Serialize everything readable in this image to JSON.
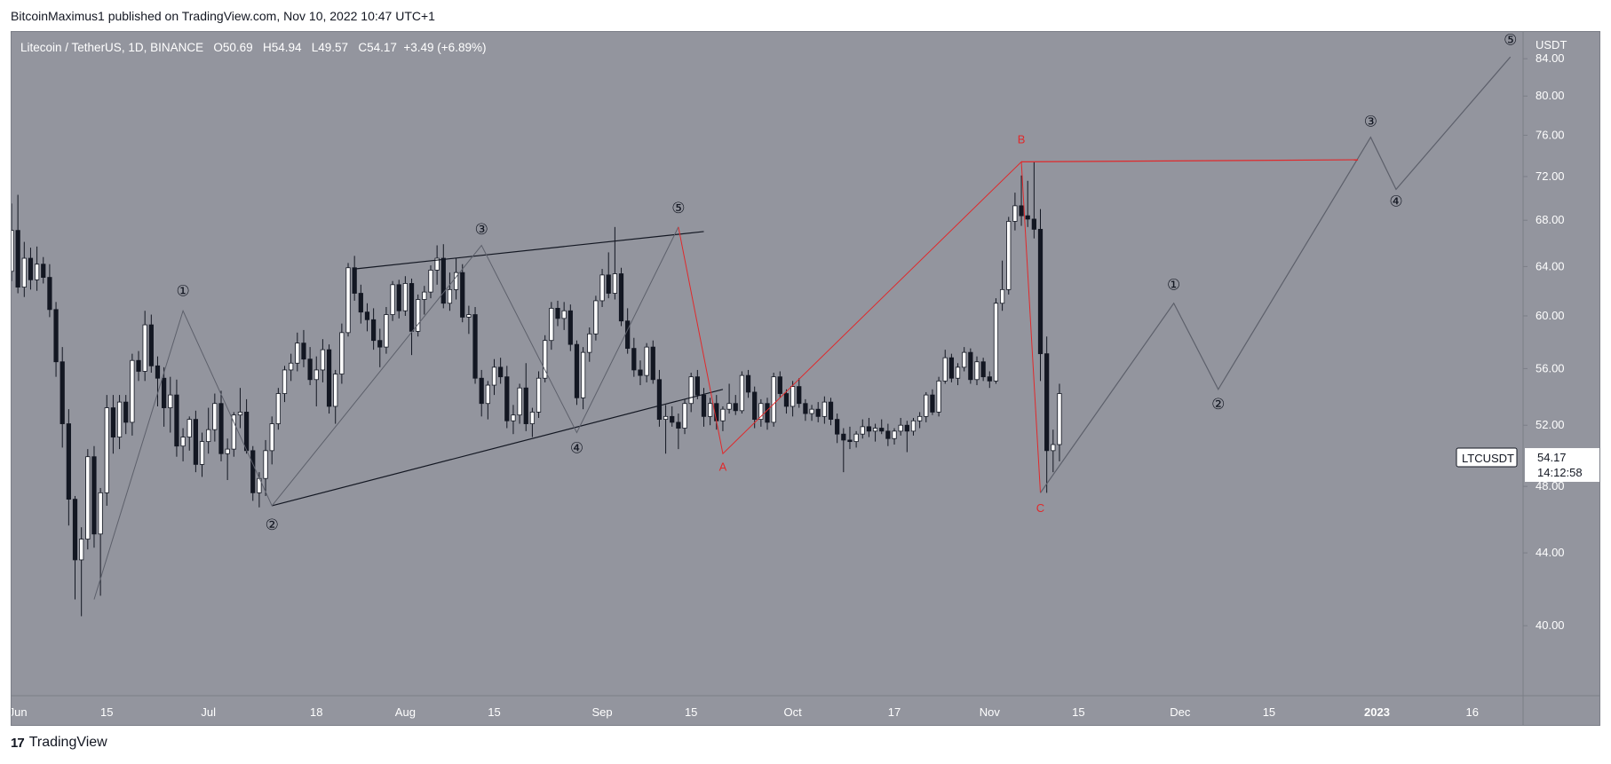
{
  "header": {
    "text": "BitcoinMaximus1 published on TradingView.com, Nov 10, 2022 10:47 UTC+1"
  },
  "legend": {
    "symbol": "Litecoin / TetherUS, 1D, BINANCE",
    "open_label": "O",
    "open": "50.69",
    "high_label": "H",
    "high": "54.94",
    "low_label": "L",
    "low": "49.57",
    "close_label": "C",
    "close": "54.17",
    "change": "+3.49 (+6.89%)"
  },
  "price_axis": {
    "currency": "USDT",
    "ticks": [
      "84.00",
      "80.00",
      "76.00",
      "72.00",
      "68.00",
      "64.00",
      "60.00",
      "56.00",
      "52.00",
      "48.00",
      "44.00",
      "40.00"
    ]
  },
  "time_axis": {
    "ticks": [
      "Jun",
      "15",
      "Jul",
      "18",
      "Aug",
      "15",
      "Sep",
      "15",
      "Oct",
      "17",
      "Nov",
      "15",
      "Dec",
      "15",
      "2023",
      "16"
    ]
  },
  "price_marker": {
    "symbol_tag": "LTCUSDT",
    "price": "54.17",
    "countdown": "14:12:58"
  },
  "footer": {
    "brand": "TradingView",
    "logo_glyph": "17"
  },
  "colors": {
    "chart_bg": "#93959e",
    "bull_body": "#ffffff",
    "bear_body": "#131722",
    "trendline": "#131722",
    "wave_line": "#5d606b",
    "correction_line": "#e0292b",
    "wave_label": "#131722",
    "correction_label": "#e0292b"
  },
  "chart_data": {
    "type": "candlestick",
    "title": "Litecoin / TetherUS, 1D, BINANCE",
    "ylabel": "USDT",
    "ylim": [
      36.5,
      87.0
    ],
    "x_domain_dates": [
      "2022-05-31",
      "2023-01-24"
    ],
    "y_scale": "log",
    "candles": {
      "start_date": "2022-05-31",
      "ohlc": [
        [
          63.6,
          69.5,
          62.8,
          67.1
        ],
        [
          67.1,
          70.3,
          61.8,
          62.3
        ],
        [
          62.3,
          66.1,
          61.5,
          64.7
        ],
        [
          64.7,
          65.6,
          62.1,
          62.9
        ],
        [
          62.9,
          65.7,
          62.0,
          64.2
        ],
        [
          64.2,
          64.8,
          62.6,
          63.1
        ],
        [
          63.1,
          64.2,
          59.9,
          60.5
        ],
        [
          60.5,
          61.1,
          55.4,
          56.5
        ],
        [
          56.5,
          57.6,
          50.5,
          52.1
        ],
        [
          52.1,
          53.1,
          45.6,
          47.2
        ],
        [
          47.2,
          47.4,
          41.4,
          43.6
        ],
        [
          43.6,
          45.5,
          40.5,
          44.8
        ],
        [
          44.8,
          50.4,
          44.2,
          49.9
        ],
        [
          49.9,
          50.6,
          44.3,
          45.1
        ],
        [
          45.1,
          47.9,
          41.6,
          47.6
        ],
        [
          47.6,
          54.1,
          46.8,
          53.2
        ],
        [
          53.2,
          54.1,
          50.1,
          51.2
        ],
        [
          51.2,
          54.1,
          50.4,
          53.6
        ],
        [
          53.6,
          54.1,
          51.4,
          52.2
        ],
        [
          52.2,
          57.1,
          51.3,
          56.6
        ],
        [
          56.6,
          57.3,
          55.1,
          55.8
        ],
        [
          55.8,
          60.4,
          55.1,
          59.3
        ],
        [
          59.3,
          60.1,
          55.7,
          56.2
        ],
        [
          56.2,
          56.9,
          53.3,
          55.3
        ],
        [
          55.3,
          56.1,
          51.9,
          53.2
        ],
        [
          53.2,
          55.4,
          51.5,
          54.1
        ],
        [
          54.1,
          55.2,
          49.9,
          50.6
        ],
        [
          50.6,
          51.8,
          49.6,
          51.2
        ],
        [
          51.2,
          52.6,
          50.3,
          52.4
        ],
        [
          52.4,
          53.0,
          48.9,
          49.4
        ],
        [
          49.4,
          51.5,
          48.6,
          50.9
        ],
        [
          50.9,
          53.2,
          50.1,
          51.7
        ],
        [
          51.7,
          54.2,
          50.9,
          53.5
        ],
        [
          53.5,
          54.4,
          49.6,
          50.1
        ],
        [
          50.1,
          51.1,
          48.4,
          50.4
        ],
        [
          50.4,
          52.9,
          49.9,
          52.7
        ],
        [
          52.7,
          54.6,
          51.8,
          52.9
        ],
        [
          52.9,
          53.8,
          50.1,
          50.3
        ],
        [
          50.3,
          50.6,
          47.1,
          47.6
        ],
        [
          47.6,
          48.9,
          46.7,
          48.5
        ],
        [
          48.5,
          51.0,
          47.4,
          50.3
        ],
        [
          50.3,
          52.6,
          49.4,
          52.1
        ],
        [
          52.1,
          54.6,
          51.7,
          54.2
        ],
        [
          54.2,
          56.2,
          53.6,
          55.9
        ],
        [
          55.9,
          57.1,
          55.1,
          56.4
        ],
        [
          56.4,
          58.7,
          55.8,
          57.9
        ],
        [
          57.9,
          58.9,
          56.1,
          56.7
        ],
        [
          56.7,
          57.6,
          54.8,
          55.2
        ],
        [
          55.2,
          56.9,
          53.3,
          55.9
        ],
        [
          55.9,
          58.2,
          55.0,
          57.4
        ],
        [
          57.4,
          57.8,
          52.8,
          53.3
        ],
        [
          53.3,
          55.9,
          52.1,
          55.6
        ],
        [
          55.6,
          59.4,
          54.9,
          58.7
        ],
        [
          58.7,
          64.3,
          58.4,
          63.9
        ],
        [
          63.9,
          64.9,
          61.2,
          61.8
        ],
        [
          61.8,
          62.5,
          59.4,
          60.3
        ],
        [
          60.3,
          61.0,
          58.8,
          59.7
        ],
        [
          59.7,
          60.6,
          57.4,
          58.1
        ],
        [
          58.1,
          59.0,
          56.1,
          57.6
        ],
        [
          57.6,
          60.7,
          57.1,
          60.1
        ],
        [
          60.1,
          62.8,
          59.6,
          62.5
        ],
        [
          62.5,
          62.9,
          59.8,
          60.4
        ],
        [
          60.4,
          63.2,
          60.0,
          62.6
        ],
        [
          62.6,
          63.0,
          57.0,
          58.8
        ],
        [
          58.8,
          61.7,
          58.4,
          61.3
        ],
        [
          61.3,
          62.4,
          60.1,
          61.9
        ],
        [
          61.9,
          64.1,
          61.4,
          63.7
        ],
        [
          63.7,
          65.8,
          62.5,
          64.7
        ],
        [
          64.7,
          65.9,
          60.6,
          61.0
        ],
        [
          61.0,
          63.5,
          60.4,
          62.1
        ],
        [
          62.1,
          64.7,
          61.3,
          63.5
        ],
        [
          63.5,
          64.2,
          59.5,
          59.9
        ],
        [
          59.9,
          60.8,
          58.6,
          60.1
        ],
        [
          60.1,
          60.7,
          54.9,
          55.3
        ],
        [
          55.3,
          55.9,
          52.6,
          53.5
        ],
        [
          53.5,
          55.1,
          52.4,
          54.8
        ],
        [
          54.8,
          56.7,
          54.1,
          56.1
        ],
        [
          56.1,
          56.8,
          54.9,
          55.4
        ],
        [
          55.4,
          56.2,
          51.8,
          52.3
        ],
        [
          52.3,
          53.4,
          51.4,
          52.7
        ],
        [
          52.7,
          54.9,
          52.1,
          54.6
        ],
        [
          54.6,
          56.4,
          51.6,
          52.1
        ],
        [
          52.1,
          53.2,
          51.2,
          52.9
        ],
        [
          52.9,
          55.8,
          52.5,
          55.3
        ],
        [
          55.3,
          58.5,
          55.0,
          58.1
        ],
        [
          58.1,
          61.1,
          57.4,
          60.6
        ],
        [
          60.6,
          61.2,
          59.2,
          59.8
        ],
        [
          59.8,
          61.1,
          58.9,
          60.4
        ],
        [
          60.4,
          60.9,
          57.3,
          57.8
        ],
        [
          57.8,
          58.1,
          53.4,
          53.9
        ],
        [
          53.9,
          57.6,
          53.1,
          57.2
        ],
        [
          57.2,
          59.1,
          56.5,
          58.6
        ],
        [
          58.6,
          61.6,
          58.1,
          61.2
        ],
        [
          61.2,
          63.8,
          60.7,
          63.3
        ],
        [
          63.3,
          65.2,
          61.4,
          61.8
        ],
        [
          61.8,
          67.4,
          61.3,
          63.4
        ],
        [
          63.4,
          63.9,
          59.2,
          59.6
        ],
        [
          59.6,
          60.6,
          57.1,
          57.5
        ],
        [
          57.5,
          58.3,
          55.4,
          55.9
        ],
        [
          55.9,
          56.6,
          54.8,
          55.5
        ],
        [
          55.5,
          57.9,
          55.0,
          57.6
        ],
        [
          57.6,
          58.1,
          54.9,
          55.2
        ],
        [
          55.2,
          55.9,
          51.9,
          52.4
        ],
        [
          52.4,
          53.4,
          50.1,
          52.6
        ],
        [
          52.6,
          53.3,
          51.9,
          52.2
        ],
        [
          52.2,
          52.8,
          50.4,
          51.8
        ],
        [
          51.8,
          53.8,
          51.4,
          53.5
        ],
        [
          53.5,
          55.7,
          52.9,
          55.4
        ],
        [
          55.4,
          55.9,
          53.8,
          54.1
        ],
        [
          54.1,
          54.6,
          51.9,
          52.6
        ],
        [
          52.6,
          53.9,
          52.0,
          53.5
        ],
        [
          53.5,
          54.1,
          51.7,
          52.3
        ],
        [
          52.3,
          53.3,
          51.6,
          53.1
        ],
        [
          53.1,
          54.9,
          52.8,
          53.5
        ],
        [
          53.5,
          54.1,
          52.7,
          53.0
        ],
        [
          53.0,
          55.8,
          52.8,
          55.5
        ],
        [
          55.5,
          55.9,
          53.9,
          54.3
        ],
        [
          54.3,
          54.7,
          51.8,
          52.4
        ],
        [
          52.4,
          53.8,
          51.9,
          53.5
        ],
        [
          53.5,
          53.9,
          51.7,
          52.2
        ],
        [
          52.2,
          55.7,
          51.9,
          55.4
        ],
        [
          55.4,
          55.8,
          53.9,
          54.2
        ],
        [
          54.2,
          54.5,
          52.8,
          53.3
        ],
        [
          53.3,
          55.1,
          52.6,
          54.7
        ],
        [
          54.7,
          55.3,
          53.2,
          53.5
        ],
        [
          53.5,
          53.8,
          52.3,
          52.8
        ],
        [
          52.8,
          53.4,
          52.3,
          53.1
        ],
        [
          53.1,
          53.6,
          52.2,
          52.6
        ],
        [
          52.6,
          54.0,
          52.1,
          53.6
        ],
        [
          53.6,
          53.9,
          52.0,
          52.4
        ],
        [
          52.4,
          52.8,
          50.8,
          51.4
        ],
        [
          51.4,
          51.8,
          48.9,
          51.0
        ],
        [
          51.0,
          51.9,
          50.4,
          50.9
        ],
        [
          50.9,
          51.6,
          50.5,
          51.4
        ],
        [
          51.4,
          52.4,
          51.1,
          51.9
        ],
        [
          51.9,
          52.5,
          51.2,
          51.6
        ],
        [
          51.6,
          52.1,
          50.9,
          51.8
        ],
        [
          51.8,
          52.4,
          51.4,
          51.6
        ],
        [
          51.6,
          52.1,
          50.6,
          51.1
        ],
        [
          51.1,
          51.8,
          50.7,
          51.6
        ],
        [
          51.6,
          52.5,
          51.3,
          52.0
        ],
        [
          52.0,
          52.3,
          50.2,
          51.6
        ],
        [
          51.6,
          52.5,
          51.3,
          52.3
        ],
        [
          52.3,
          52.9,
          51.8,
          52.6
        ],
        [
          52.6,
          54.3,
          52.2,
          54.1
        ],
        [
          54.1,
          54.5,
          52.7,
          52.9
        ],
        [
          52.9,
          55.4,
          52.6,
          55.1
        ],
        [
          55.1,
          57.4,
          54.9,
          56.8
        ],
        [
          56.8,
          57.1,
          55.0,
          55.3
        ],
        [
          55.3,
          56.4,
          54.8,
          56.1
        ],
        [
          56.1,
          57.6,
          55.8,
          57.2
        ],
        [
          57.2,
          57.5,
          54.9,
          55.2
        ],
        [
          55.2,
          56.9,
          54.8,
          56.5
        ],
        [
          56.5,
          56.8,
          55.1,
          55.4
        ],
        [
          55.4,
          55.8,
          54.6,
          55.1
        ],
        [
          55.1,
          61.4,
          54.9,
          61.0
        ],
        [
          61.0,
          64.5,
          60.4,
          62.1
        ],
        [
          62.1,
          68.3,
          61.7,
          67.9
        ],
        [
          67.9,
          70.5,
          67.1,
          69.3
        ],
        [
          69.3,
          72.1,
          67.5,
          68.4
        ],
        [
          68.4,
          71.6,
          67.4,
          68.1
        ],
        [
          68.1,
          73.4,
          66.4,
          67.2
        ],
        [
          67.2,
          69.0,
          55.1,
          57.1
        ],
        [
          57.1,
          58.4,
          47.6,
          50.3
        ],
        [
          50.3,
          51.7,
          48.9,
          50.7
        ],
        [
          50.7,
          54.9,
          49.6,
          54.2
        ]
      ]
    },
    "overlays": {
      "wedge_upper": [
        [
          "2022-07-24",
          63.8
        ],
        [
          "2022-09-17",
          67.0
        ]
      ],
      "wedge_lower": [
        [
          "2022-07-11",
          46.8
        ],
        [
          "2022-09-20",
          54.5
        ]
      ],
      "impulse_wave": [
        [
          "2022-06-13",
          41.4
        ],
        [
          "2022-06-27",
          60.4
        ],
        [
          "2022-07-11",
          46.8
        ],
        [
          "2022-08-13",
          65.8
        ],
        [
          "2022-08-28",
          51.5
        ],
        [
          "2022-09-13",
          67.4
        ]
      ],
      "abc_correction": [
        [
          "2022-09-13",
          67.4
        ],
        [
          "2022-09-20",
          50.1
        ],
        [
          "2022-11-06",
          73.4
        ],
        [
          "2022-11-09",
          47.6
        ]
      ],
      "projection": [
        [
          "2022-11-09",
          47.6
        ],
        [
          "2022-11-30",
          61.0
        ],
        [
          "2022-12-07",
          54.5
        ],
        [
          "2022-12-31",
          75.8
        ],
        [
          "2023-01-04",
          70.8
        ],
        [
          "2023-01-22",
          84.2
        ]
      ],
      "resistance": [
        [
          "2022-11-06",
          73.4
        ],
        [
          "2022-12-29",
          73.6
        ]
      ]
    },
    "wave_labels": [
      {
        "text": "①",
        "x": "2022-06-27",
        "y": 61.9
      },
      {
        "text": "②",
        "x": "2022-07-11",
        "y": 45.6
      },
      {
        "text": "③",
        "x": "2022-08-13",
        "y": 67.1
      },
      {
        "text": "④",
        "x": "2022-08-28",
        "y": 50.4
      },
      {
        "text": "⑤",
        "x": "2022-09-13",
        "y": 69.0
      },
      {
        "text": "A",
        "x": "2022-09-20",
        "y": 49.2
      },
      {
        "text": "B",
        "x": "2022-11-06",
        "y": 75.5
      },
      {
        "text": "C",
        "x": "2022-11-09",
        "y": 46.6
      },
      {
        "text": "①",
        "x": "2022-11-30",
        "y": 62.4
      },
      {
        "text": "②",
        "x": "2022-12-07",
        "y": 53.4
      },
      {
        "text": "③",
        "x": "2022-12-31",
        "y": 77.3
      },
      {
        "text": "④",
        "x": "2023-01-04",
        "y": 69.6
      },
      {
        "text": "⑤",
        "x": "2023-01-22",
        "y": 86.0
      }
    ]
  }
}
